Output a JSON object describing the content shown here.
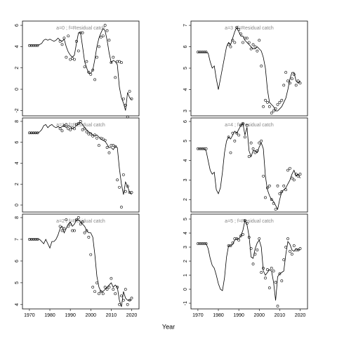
{
  "xlabel": "Year",
  "chart_data": [
    {
      "type": "line",
      "title": "a=0 ; f=Residual catch",
      "xlim": [
        1966.6,
        2023.6
      ],
      "ylim": [
        -2.5,
        6.4
      ],
      "yticks": [
        -2,
        0,
        2,
        4,
        6
      ],
      "x": [
        1970,
        1971,
        1972,
        1973,
        1974,
        1975,
        1976,
        1977,
        1978,
        1979,
        1980,
        1981,
        1982,
        1983,
        1984,
        1985,
        1986,
        1987,
        1988,
        1989,
        1990,
        1991,
        1992,
        1993,
        1994,
        1995,
        1996,
        1997,
        1998,
        1999,
        2000,
        2001,
        2002,
        2003,
        2004,
        2005,
        2006,
        2007,
        2008,
        2009,
        2010,
        2011,
        2012,
        2013,
        2014,
        2015,
        2016,
        2017,
        2018,
        2019,
        2020
      ],
      "series": [
        {
          "color": "#000000",
          "marker": "none",
          "values": [
            4.1,
            4.1,
            4.1,
            4.1,
            4.1,
            4.2,
            4.3,
            4.6,
            4.7,
            4.6,
            4.7,
            4.6,
            4.5,
            4.6,
            4.8,
            4.6,
            4.5,
            4.7,
            4.0,
            3.5,
            3.2,
            3.0,
            3.2,
            4.3,
            5.3,
            5.3,
            4.0,
            2.6,
            2.0,
            1.5,
            1.5,
            1.8,
            2.8,
            4.0,
            4.8,
            5.3,
            5.7,
            5.5,
            4.6,
            3.4,
            2.5,
            2.7,
            2.6,
            2.3,
            0.2,
            -0.8,
            -1.3,
            -2.0,
            -0.3,
            -0.8,
            -1.0
          ]
        },
        {
          "color": "#000000",
          "marker": "circle",
          "values": [
            4.1,
            4.1,
            4.1,
            4.1,
            4.1,
            null,
            null,
            null,
            null,
            null,
            null,
            null,
            null,
            null,
            null,
            4.5,
            4.2,
            4.8,
            3.0,
            5.0,
            2.8,
            2.9,
            2.8,
            4.5,
            3.6,
            5.3,
            5.3,
            2.1,
            2.6,
            1.6,
            1.4,
            1.8,
            0.9,
            3.0,
            4.0,
            4.9,
            5.0,
            6.0,
            5.5,
            4.6,
            2.5,
            3.0,
            1.1,
            2.6,
            2.6,
            2.5,
            -0.9,
            -1.5,
            -2.6,
            -0.2,
            -0.9
          ]
        }
      ]
    },
    {
      "type": "line",
      "title": "a=1 ; f=Residual catch",
      "xlim": [
        1966.6,
        2023.6
      ],
      "ylim": [
        -0.67,
        8.33
      ],
      "yticks": [
        0,
        2,
        4,
        6,
        8
      ],
      "x": [
        1970,
        1971,
        1972,
        1973,
        1974,
        1975,
        1976,
        1977,
        1978,
        1979,
        1980,
        1981,
        1982,
        1983,
        1984,
        1985,
        1986,
        1987,
        1988,
        1989,
        1990,
        1991,
        1992,
        1993,
        1994,
        1995,
        1996,
        1997,
        1998,
        1999,
        2000,
        2001,
        2002,
        2003,
        2004,
        2005,
        2006,
        2007,
        2008,
        2009,
        2010,
        2011,
        2012,
        2013,
        2014,
        2015,
        2016,
        2017,
        2018,
        2019,
        2020
      ],
      "series": [
        {
          "color": "#000000",
          "marker": "none",
          "values": [
            6.9,
            6.9,
            6.9,
            6.9,
            6.9,
            7.0,
            7.2,
            7.6,
            7.7,
            7.4,
            7.6,
            7.7,
            7.5,
            7.4,
            7.5,
            7.4,
            7.5,
            7.6,
            7.4,
            7.6,
            7.5,
            7.3,
            7.4,
            7.6,
            7.8,
            7.9,
            7.7,
            7.4,
            7.2,
            7.0,
            6.9,
            6.7,
            6.6,
            6.7,
            6.5,
            6.3,
            6.2,
            6.1,
            5.8,
            5.5,
            5.5,
            5.3,
            5.6,
            5.5,
            3.5,
            2.0,
            1.0,
            2.2,
            1.8,
            1.2,
            1.0
          ]
        },
        {
          "color": "#000000",
          "marker": "circle",
          "values": [
            6.9,
            6.9,
            6.9,
            6.9,
            6.9,
            null,
            null,
            null,
            null,
            null,
            null,
            null,
            null,
            null,
            null,
            7.3,
            7.1,
            7.6,
            7.7,
            7.3,
            7.2,
            7.4,
            7.3,
            7.7,
            7.8,
            8.0,
            7.2,
            7.3,
            7.0,
            6.8,
            6.8,
            6.6,
            6.7,
            6.4,
            5.7,
            6.4,
            6.3,
            6.2,
            5.5,
            5.0,
            5.7,
            5.7,
            5.6,
            2.4,
            1.7,
            -0.2,
            2.9,
            1.3,
            1.8,
            1.2,
            1.2
          ]
        }
      ]
    },
    {
      "type": "line",
      "title": "a=2 ; f=Residual catch",
      "xlim": [
        1966.6,
        2023.6
      ],
      "ylim": [
        3.8,
        8.16
      ],
      "yticks": [
        4,
        5,
        6,
        7,
        8
      ],
      "xticks": [
        1970,
        1980,
        1990,
        2000,
        2010,
        2020
      ],
      "x": [
        1970,
        1971,
        1972,
        1973,
        1974,
        1975,
        1976,
        1977,
        1978,
        1979,
        1980,
        1981,
        1982,
        1983,
        1984,
        1985,
        1986,
        1987,
        1988,
        1989,
        1990,
        1991,
        1992,
        1993,
        1994,
        1995,
        1996,
        1997,
        1998,
        1999,
        2000,
        2001,
        2002,
        2003,
        2004,
        2005,
        2006,
        2007,
        2008,
        2009,
        2010,
        2011,
        2012,
        2013,
        2014,
        2015,
        2016,
        2017,
        2018,
        2019,
        2020
      ],
      "series": [
        {
          "color": "#000000",
          "marker": "none",
          "values": [
            7.0,
            7.0,
            7.0,
            7.0,
            7.0,
            7.0,
            6.9,
            6.8,
            7.0,
            6.8,
            6.6,
            6.9,
            6.9,
            7.0,
            7.2,
            7.5,
            7.6,
            7.3,
            7.5,
            7.7,
            7.8,
            7.6,
            7.7,
            7.9,
            7.9,
            7.8,
            7.7,
            7.6,
            7.4,
            7.3,
            7.3,
            7.1,
            6.3,
            5.3,
            4.8,
            4.6,
            4.6,
            4.7,
            4.8,
            4.9,
            5.0,
            4.8,
            4.9,
            4.8,
            4.2,
            3.9,
            4.6,
            4.3,
            4.2,
            4.2,
            4.2
          ]
        },
        {
          "color": "#000000",
          "marker": "circle",
          "values": [
            7.0,
            7.0,
            7.0,
            7.0,
            7.0,
            null,
            null,
            null,
            null,
            null,
            null,
            null,
            null,
            null,
            null,
            7.6,
            7.4,
            7.5,
            7.9,
            7.6,
            7.7,
            7.4,
            7.4,
            7.9,
            8.0,
            7.7,
            7.8,
            7.3,
            7.4,
            7.1,
            6.3,
            4.8,
            4.6,
            5.0,
            4.5,
            4.6,
            4.5,
            4.8,
            4.7,
            4.8,
            5.2,
            4.7,
            4.5,
            4.8,
            4.0,
            4.4,
            4.2,
            4.7,
            4.0,
            4.2,
            4.3
          ]
        }
      ]
    },
    {
      "type": "line",
      "title": "a=3 ; f=Residual catch",
      "xlim": [
        1966.6,
        2023.6
      ],
      "ylim": [
        2.77,
        7.2
      ],
      "yticks": [
        3,
        4,
        5,
        6,
        7
      ],
      "x": [
        1970,
        1971,
        1972,
        1973,
        1974,
        1975,
        1976,
        1977,
        1978,
        1979,
        1980,
        1981,
        1982,
        1983,
        1984,
        1985,
        1986,
        1987,
        1988,
        1989,
        1990,
        1991,
        1992,
        1993,
        1994,
        1995,
        1996,
        1997,
        1998,
        1999,
        2000,
        2001,
        2002,
        2003,
        2004,
        2005,
        2006,
        2007,
        2008,
        2009,
        2010,
        2011,
        2012,
        2013,
        2014,
        2015,
        2016,
        2017,
        2018,
        2019,
        2020
      ],
      "series": [
        {
          "color": "#000000",
          "marker": "none",
          "values": [
            5.75,
            5.75,
            5.75,
            5.75,
            5.75,
            5.7,
            5.3,
            5.0,
            5.1,
            4.5,
            4.0,
            4.5,
            5.0,
            5.5,
            6.0,
            6.2,
            6.1,
            6.4,
            6.7,
            6.9,
            6.7,
            6.5,
            6.5,
            6.3,
            6.2,
            6.1,
            6.0,
            5.9,
            5.9,
            6.0,
            5.9,
            5.8,
            5.5,
            5.0,
            4.0,
            3.4,
            3.3,
            3.2,
            3.0,
            3.0,
            3.1,
            3.2,
            3.4,
            3.6,
            4.0,
            4.5,
            4.8,
            4.8,
            4.4,
            4.3,
            4.4
          ]
        },
        {
          "color": "#000000",
          "marker": "circle",
          "values": [
            5.75,
            5.75,
            5.75,
            5.75,
            5.75,
            null,
            null,
            null,
            null,
            null,
            null,
            null,
            null,
            null,
            null,
            6.1,
            6.0,
            6.3,
            6.2,
            6.9,
            6.8,
            6.6,
            6.2,
            6.4,
            6.4,
            6.2,
            5.9,
            6.1,
            6.0,
            5.8,
            6.3,
            5.1,
            3.2,
            3.5,
            3.4,
            3.2,
            2.9,
            3.0,
            3.1,
            3.3,
            3.4,
            3.5,
            4.2,
            4.8,
            4.4,
            4.3,
            4.5,
            4.7,
            4.2,
            4.4,
            4.3
          ]
        }
      ]
    },
    {
      "type": "line",
      "title": "a=4 ; f=Residual catch",
      "xlim": [
        1966.6,
        2023.6
      ],
      "ylim": [
        1.36,
        6.18
      ],
      "yticks": [
        2,
        3,
        4,
        5,
        6
      ],
      "x": [
        1970,
        1971,
        1972,
        1973,
        1974,
        1975,
        1976,
        1977,
        1978,
        1979,
        1980,
        1981,
        1982,
        1983,
        1984,
        1985,
        1986,
        1987,
        1988,
        1989,
        1990,
        1991,
        1992,
        1993,
        1994,
        1995,
        1996,
        1997,
        1998,
        1999,
        2000,
        2001,
        2002,
        2003,
        2004,
        2005,
        2006,
        2007,
        2008,
        2009,
        2010,
        2011,
        2012,
        2013,
        2014,
        2015,
        2016,
        2017,
        2018,
        2019,
        2020
      ],
      "series": [
        {
          "color": "#000000",
          "marker": "none",
          "values": [
            4.6,
            4.6,
            4.6,
            4.6,
            4.5,
            4.0,
            3.5,
            3.3,
            3.4,
            2.5,
            2.3,
            2.6,
            3.4,
            4.4,
            5.0,
            5.2,
            5.1,
            5.3,
            5.5,
            5.4,
            5.6,
            5.8,
            5.9,
            5.3,
            5.7,
            4.5,
            4.2,
            4.5,
            4.5,
            4.4,
            4.7,
            4.9,
            4.6,
            3.2,
            2.5,
            2.2,
            2.0,
            1.9,
            1.7,
            1.5,
            2.0,
            2.4,
            2.5,
            2.6,
            2.8,
            3.0,
            3.3,
            3.5,
            3.2,
            3.3,
            3.1
          ]
        },
        {
          "color": "#000000",
          "marker": "circle",
          "values": [
            4.6,
            4.6,
            4.6,
            4.6,
            4.6,
            null,
            null,
            null,
            null,
            null,
            null,
            null,
            null,
            null,
            null,
            5.2,
            4.4,
            5.4,
            5.0,
            5.4,
            5.3,
            5.8,
            5.9,
            5.2,
            5.8,
            4.2,
            4.9,
            4.6,
            4.4,
            4.5,
            4.9,
            5.0,
            3.2,
            2.1,
            2.6,
            2.7,
            2.0,
            1.8,
            1.5,
            2.7,
            2.3,
            2.4,
            2.7,
            2.5,
            3.5,
            3.6,
            3.1,
            3.0,
            3.3,
            3.2,
            3.3
          ]
        }
      ]
    },
    {
      "type": "line",
      "title": "a=5 ; f=Residual catch",
      "xlim": [
        1966.6,
        2023.6
      ],
      "ylim": [
        -1.4,
        5.35
      ],
      "yticks": [
        -1,
        0,
        1,
        2,
        3,
        4,
        5
      ],
      "xticks": [
        1970,
        1980,
        1990,
        2000,
        2010,
        2020
      ],
      "x": [
        1970,
        1971,
        1972,
        1973,
        1974,
        1975,
        1976,
        1977,
        1978,
        1979,
        1980,
        1981,
        1982,
        1983,
        1984,
        1985,
        1986,
        1987,
        1988,
        1989,
        1990,
        1991,
        1992,
        1993,
        1994,
        1995,
        1996,
        1997,
        1998,
        1999,
        2000,
        2001,
        2002,
        2003,
        2004,
        2005,
        2006,
        2007,
        2008,
        2009,
        2010,
        2011,
        2012,
        2013,
        2014,
        2015,
        2016,
        2017,
        2018,
        2019,
        2020
      ],
      "series": [
        {
          "color": "#000000",
          "marker": "none",
          "values": [
            3.25,
            3.25,
            3.25,
            3.25,
            3.25,
            2.9,
            2.2,
            1.7,
            1.5,
            1.0,
            0.4,
            0.0,
            -0.1,
            0.8,
            2.3,
            3.1,
            3.1,
            3.2,
            3.5,
            3.6,
            3.6,
            3.8,
            4.2,
            4.9,
            4.6,
            3.8,
            2.3,
            2.2,
            2.9,
            3.3,
            3.5,
            3.0,
            1.3,
            1.0,
            1.2,
            1.4,
            1.3,
            0.5,
            -0.8,
            0.9,
            1.1,
            1.2,
            1.3,
            2.5,
            3.4,
            3.2,
            2.8,
            2.7,
            2.9,
            2.8,
            2.8
          ]
        },
        {
          "color": "#000000",
          "marker": "circle",
          "values": [
            3.25,
            3.25,
            3.25,
            3.25,
            3.25,
            null,
            null,
            null,
            null,
            null,
            null,
            null,
            null,
            null,
            null,
            3.1,
            3.1,
            3.3,
            3.6,
            3.6,
            3.5,
            3.8,
            3.9,
            4.9,
            4.7,
            3.7,
            2.9,
            1.8,
            2.5,
            2.8,
            3.6,
            1.2,
            1.5,
            0.8,
            1.4,
            0.1,
            1.5,
            1.3,
            0.5,
            -1.2,
            1.1,
            0.6,
            2.1,
            3.0,
            3.6,
            2.7,
            2.5,
            3.1,
            2.8,
            2.8,
            2.9
          ]
        }
      ]
    }
  ]
}
